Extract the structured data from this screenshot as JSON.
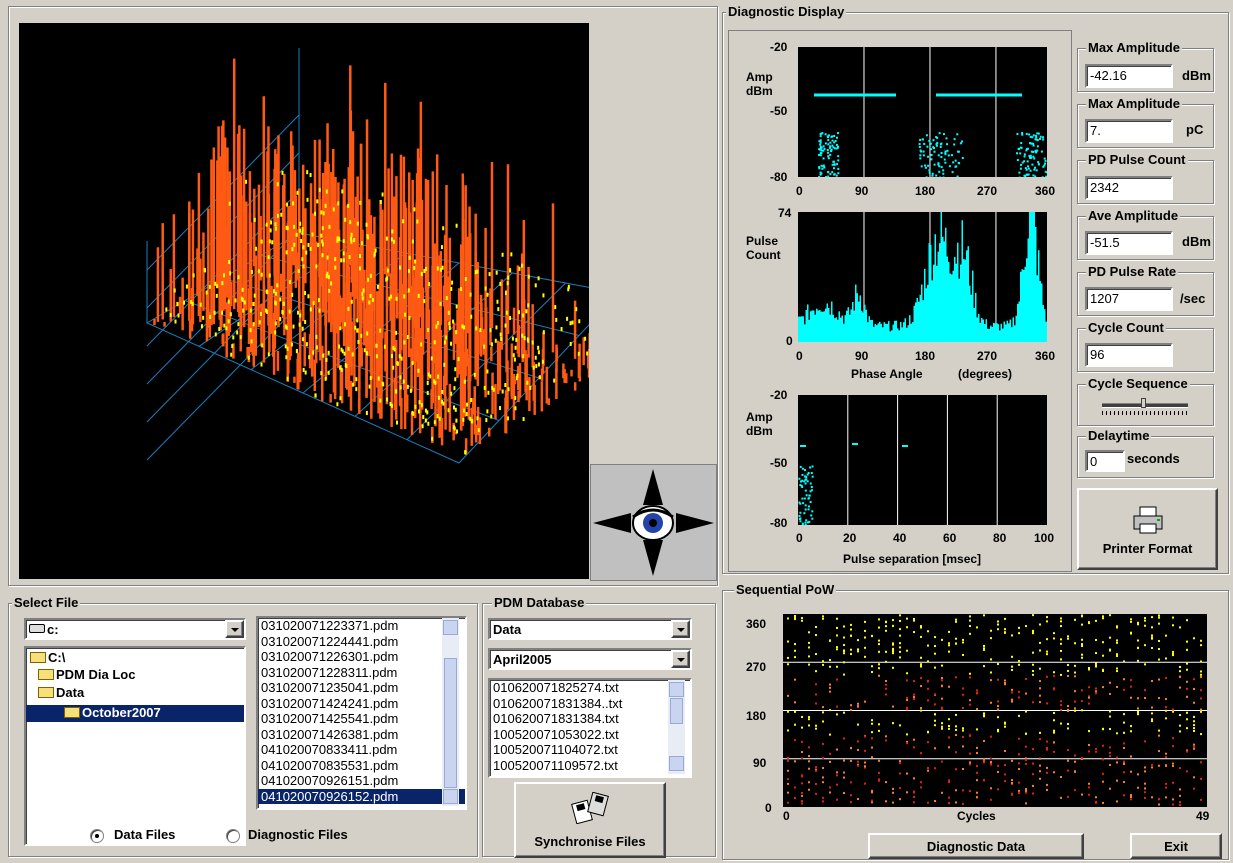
{
  "display": {
    "title": "Diagnostic Display"
  },
  "phase_chart": {
    "ytop": "-20",
    "ymid": "-50",
    "ybot": "-80",
    "ylabel1": "Amp",
    "ylabel2": "dBm",
    "x": [
      "0",
      "90",
      "180",
      "270",
      "360"
    ]
  },
  "count_chart": {
    "ytop": "74",
    "ybot": "0",
    "ylabel1": "Pulse",
    "ylabel2": "Count",
    "x": [
      "0",
      "90",
      "180",
      "270",
      "360"
    ],
    "xlabel": "Phase Angle",
    "xunit": "(degrees)"
  },
  "sep_chart": {
    "ytop": "-20",
    "ymid": "-50",
    "ybot": "-80",
    "ylabel1": "Amp",
    "ylabel2": "dBm",
    "x": [
      "0",
      "20",
      "40",
      "60",
      "80",
      "100"
    ],
    "xlabel": "Pulse separation [msec]"
  },
  "stats": {
    "max_amp_dbm": {
      "label": "Max Amplitude",
      "value": "-42.16",
      "unit": "dBm"
    },
    "max_amp_pc": {
      "label": "Max Amplitude",
      "value": "7.",
      "unit": "pC"
    },
    "pulse_count": {
      "label": "PD Pulse Count",
      "value": "2342"
    },
    "ave_amp": {
      "label": "Ave Amplitude",
      "value": "-51.5",
      "unit": "dBm"
    },
    "pulse_rate": {
      "label": "PD Pulse Rate",
      "value": "1207",
      "unit": "/sec"
    },
    "cycle_count": {
      "label": "Cycle Count",
      "value": "96"
    },
    "cycle_sequence": {
      "label": "Cycle Sequence",
      "position": 0.48
    },
    "delaytime": {
      "label": "Delaytime",
      "value": "0",
      "unit": "seconds"
    }
  },
  "printer_button": "Printer Format",
  "select_file": {
    "title": "Select File",
    "drive": "c:",
    "tree": [
      "C:\\",
      "PDM Dia Loc",
      "Data",
      "October2007"
    ],
    "files": [
      "031020071223371.pdm",
      "031020071224441.pdm",
      "031020071226301.pdm",
      "031020071228311.pdm",
      "031020071235041.pdm",
      "031020071424241.pdm",
      "031020071425541.pdm",
      "031020071426381.pdm",
      "041020070833411.pdm",
      "041020070835531.pdm",
      "041020070926151.pdm",
      "041020070926152.pdm"
    ],
    "radio_data": "Data Files",
    "radio_diag": "Diagnostic Files"
  },
  "pdm": {
    "title": "PDM Database",
    "combo1": "Data",
    "combo2": "April2005",
    "files": [
      "010620071825274.txt",
      "010620071831384..txt",
      "010620071831384.txt",
      "100520071053022.txt",
      "100520071104072.txt",
      "100520071109572.txt"
    ],
    "sync_button": "Synchronise Files"
  },
  "pow": {
    "title": "Sequential PoW",
    "y": [
      "360",
      "270",
      "180",
      "90",
      "0"
    ],
    "x0": "0",
    "x1": "49",
    "xlabel": "Cycles",
    "diag_button": "Diagnostic Data",
    "exit_button": "Exit"
  },
  "colors": {
    "cyan": "#00ffff",
    "orange": "#ff5a14",
    "yellow": "#ffff00",
    "red": "#e02010",
    "plotbg": "#000000"
  }
}
